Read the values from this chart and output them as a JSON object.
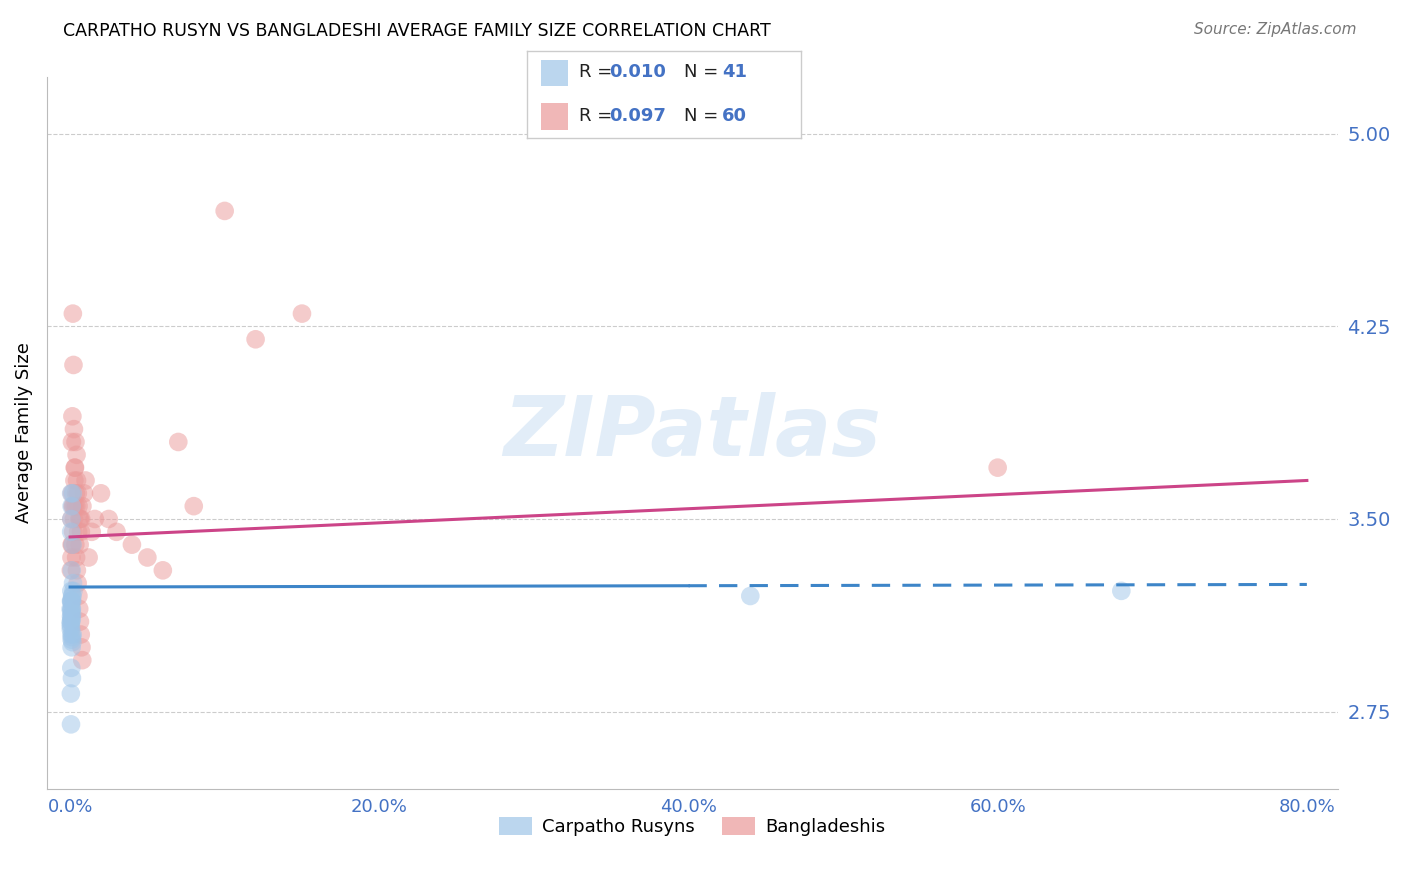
{
  "title": "CARPATHO RUSYN VS BANGLADESHI AVERAGE FAMILY SIZE CORRELATION CHART",
  "source": "Source: ZipAtlas.com",
  "ylabel": "Average Family Size",
  "xlabel_ticks": [
    "0.0%",
    "20.0%",
    "40.0%",
    "60.0%",
    "80.0%"
  ],
  "xlabel_vals": [
    0.0,
    20.0,
    40.0,
    60.0,
    80.0
  ],
  "xmin": -1.5,
  "xmax": 82,
  "ymin": 2.45,
  "ymax": 5.22,
  "yticks": [
    2.75,
    3.5,
    4.25,
    5.0
  ],
  "ytick_labels": [
    "2.75",
    "3.50",
    "4.25",
    "5.00"
  ],
  "watermark": "ZIPatlas",
  "legend_R1": "R = 0.010",
  "legend_N1": "N = 41",
  "legend_R2": "R = 0.097",
  "legend_N2": "N = 60",
  "legend_label1": "Carpatho Rusyns",
  "legend_label2": "Bangladeshis",
  "blue_color": "#9fc5e8",
  "pink_color": "#ea9999",
  "blue_line_color": "#3d85c8",
  "pink_line_color": "#cc4488",
  "axis_color": "#4472c4",
  "grid_color": "#cccccc",
  "blue_scatter_x": [
    0.1,
    0.15,
    0.08,
    0.12,
    0.05,
    0.18,
    0.22,
    0.09,
    0.07,
    0.13,
    0.06,
    0.11,
    0.04,
    0.16,
    0.1,
    0.19,
    0.08,
    0.14,
    0.07,
    0.06,
    0.05,
    0.09,
    0.12,
    0.1,
    0.15,
    0.08,
    0.07,
    0.11,
    0.13,
    0.06,
    0.04,
    0.09,
    0.17,
    0.1,
    0.08,
    0.12,
    0.05,
    0.06,
    44.0,
    68.0,
    0.07
  ],
  "blue_scatter_y": [
    3.55,
    3.2,
    3.18,
    3.15,
    3.1,
    3.6,
    3.22,
    3.18,
    3.14,
    3.13,
    3.12,
    3.11,
    3.09,
    3.4,
    3.15,
    3.25,
    3.22,
    3.18,
    3.1,
    3.08,
    3.07,
    3.05,
    3.04,
    3.03,
    3.02,
    3.5,
    3.45,
    3.3,
    3.2,
    3.18,
    3.15,
    3.12,
    3.05,
    3.0,
    2.92,
    2.88,
    2.82,
    2.7,
    3.2,
    3.22,
    3.6
  ],
  "pink_scatter_x": [
    0.08,
    0.12,
    0.18,
    0.22,
    0.3,
    0.35,
    0.4,
    0.5,
    0.6,
    0.7,
    0.15,
    0.25,
    0.38,
    0.45,
    0.55,
    0.65,
    0.1,
    0.2,
    0.28,
    0.32,
    0.42,
    0.52,
    0.62,
    0.72,
    0.8,
    0.9,
    1.0,
    1.2,
    1.4,
    1.6,
    0.05,
    0.09,
    0.14,
    0.19,
    0.24,
    0.29,
    0.34,
    0.39,
    0.44,
    0.49,
    0.54,
    0.59,
    0.64,
    0.69,
    0.74,
    0.79,
    2.0,
    2.5,
    3.0,
    4.0,
    5.0,
    6.0,
    7.0,
    8.0,
    10.0,
    12.0,
    15.0,
    60.0,
    0.11,
    0.16
  ],
  "pink_scatter_y": [
    3.5,
    3.8,
    4.3,
    4.1,
    3.7,
    3.8,
    3.55,
    3.6,
    3.5,
    3.45,
    3.9,
    3.85,
    3.6,
    3.65,
    3.55,
    3.5,
    3.4,
    3.55,
    3.65,
    3.7,
    3.75,
    3.45,
    3.4,
    3.5,
    3.55,
    3.6,
    3.65,
    3.35,
    3.45,
    3.5,
    3.3,
    3.35,
    3.4,
    3.45,
    3.5,
    3.55,
    3.4,
    3.35,
    3.3,
    3.25,
    3.2,
    3.15,
    3.1,
    3.05,
    3.0,
    2.95,
    3.6,
    3.5,
    3.45,
    3.4,
    3.35,
    3.3,
    3.8,
    3.55,
    4.7,
    4.2,
    4.3,
    3.7,
    3.6,
    3.55
  ],
  "blue_line_x0": 0,
  "blue_line_x1": 80,
  "blue_line_y0": 3.235,
  "blue_line_y1": 3.245,
  "blue_solid_end": 40,
  "pink_line_x0": 0,
  "pink_line_x1": 80,
  "pink_line_y0": 3.43,
  "pink_line_y1": 3.65
}
